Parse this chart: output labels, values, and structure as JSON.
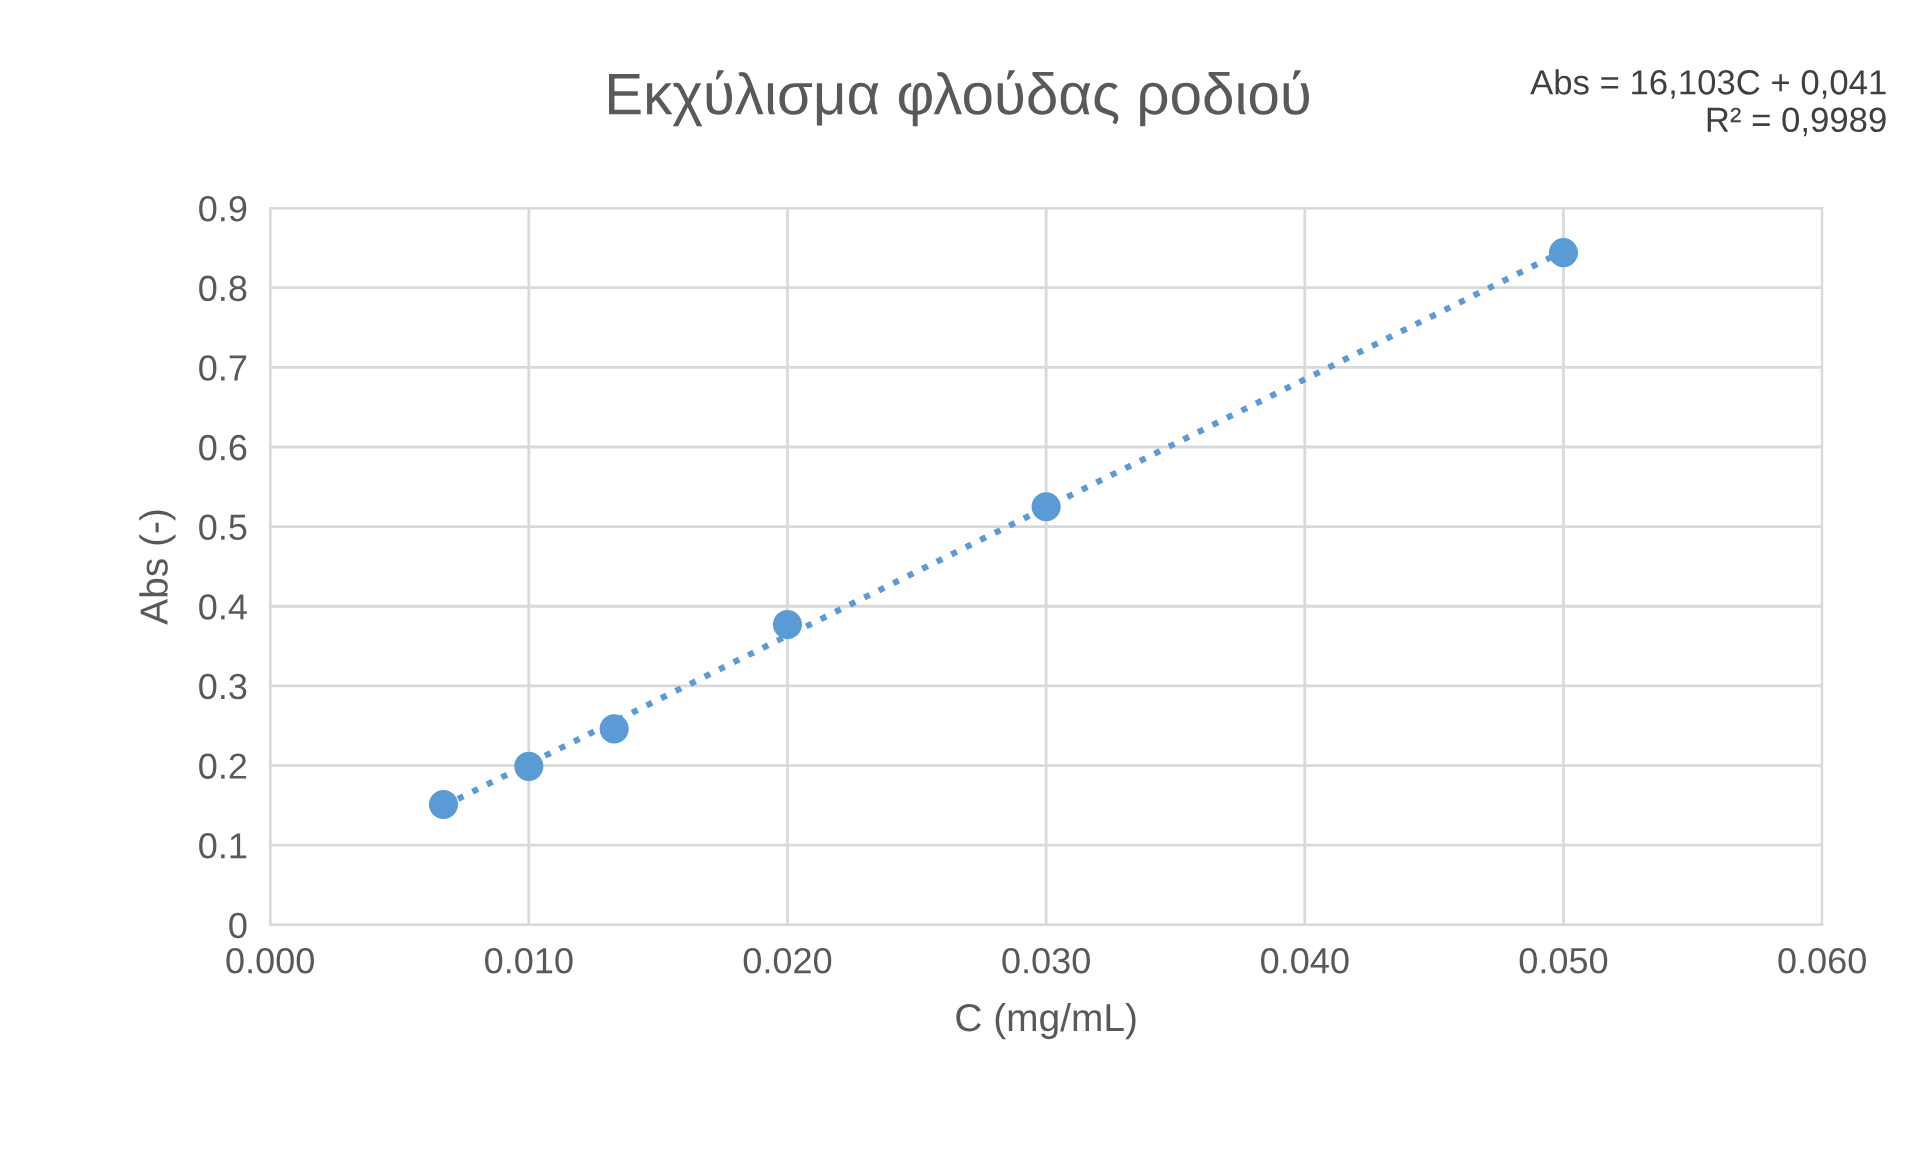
{
  "chart_data": {
    "type": "scatter",
    "title": "Εκχύλισμα φλούδας ροδιού",
    "xlabel": "C (mg/mL)",
    "ylabel": "Abs (-)",
    "series": [
      {
        "color": "#5b9bd5",
        "x": [
          0.0067,
          0.01,
          0.0133,
          0.02,
          0.03,
          0.05
        ],
        "values": [
          0.151,
          0.199,
          0.246,
          0.377,
          0.525,
          0.844
        ],
        "marker": "circle"
      },
      {
        "type": "line",
        "color": "#5b9bd5",
        "x": [
          0.0067,
          0.05
        ],
        "values": [
          0.149,
          0.846
        ],
        "line_style": "dotted",
        "marker": "none"
      }
    ],
    "annotations": [
      "Abs = 16,103C + 0,041\nR² = 0,9989"
    ],
    "xlim": [
      0,
      0.06
    ],
    "ylim": [
      0,
      0.9
    ],
    "xticks": [
      {
        "value": 0,
        "label": "0.000"
      },
      {
        "value": 0.01,
        "label": "0.010"
      },
      {
        "value": 0.02,
        "label": "0.020"
      },
      {
        "value": 0.03,
        "label": "0.030"
      },
      {
        "value": 0.04,
        "label": "0.040"
      },
      {
        "value": 0.05,
        "label": "0.050"
      },
      {
        "value": 0.06,
        "label": "0.060"
      }
    ],
    "yticks": [
      0,
      0.1,
      0.2,
      0.3,
      0.4,
      0.5,
      0.6,
      0.7,
      0.8,
      0.9
    ],
    "grid": true,
    "legend": false
  }
}
